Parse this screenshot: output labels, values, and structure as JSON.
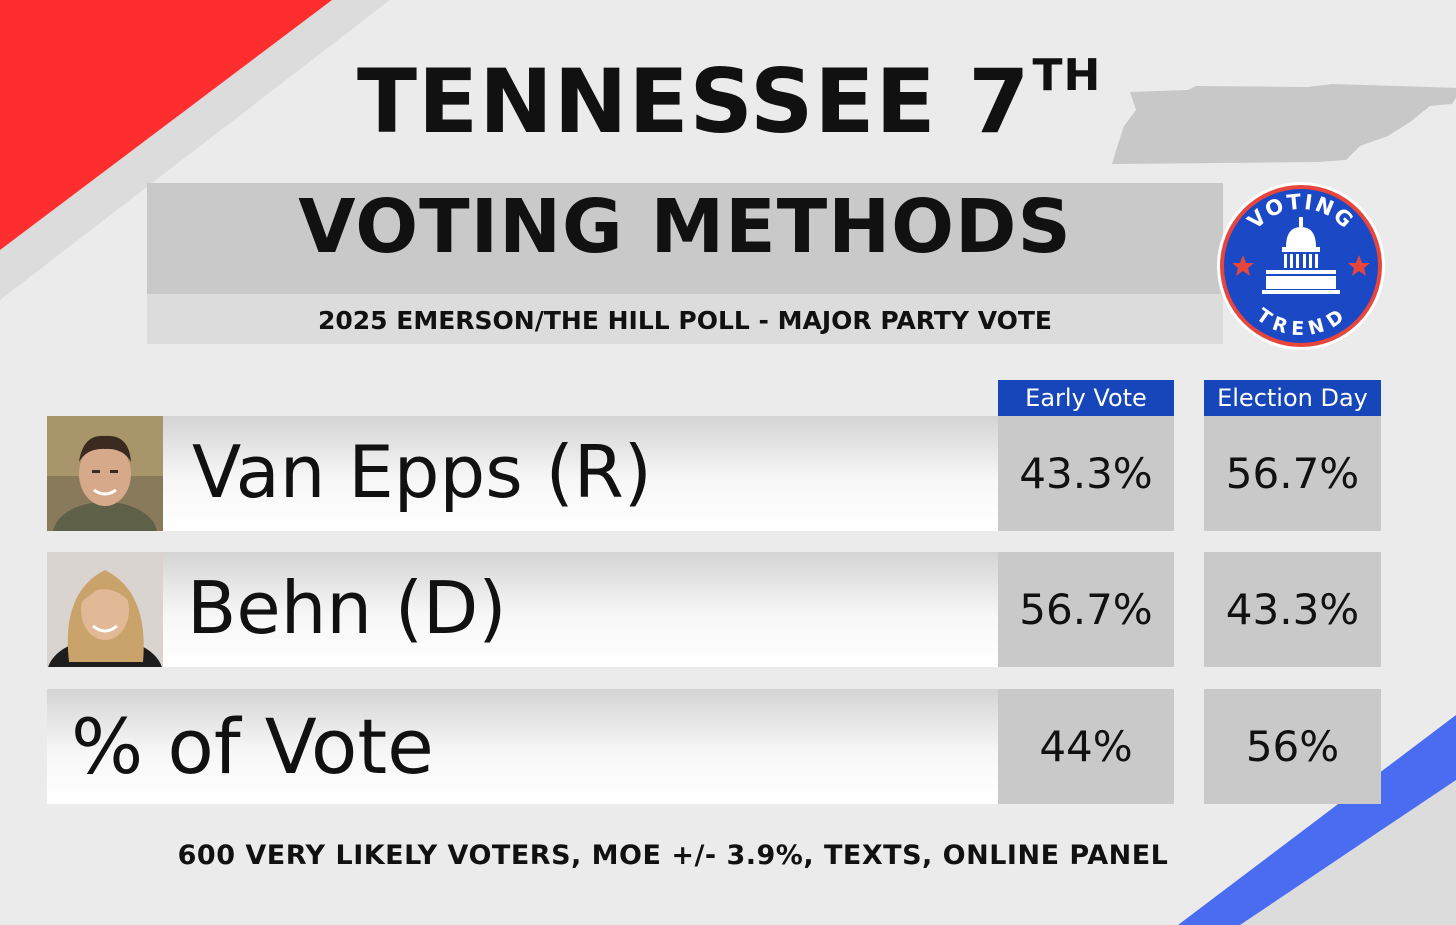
{
  "title": "TENNESSEE 7",
  "title_sup": "TH",
  "subtitle": "VOTING METHODS",
  "source": "2025 EMERSON/THE HILL POLL - MAJOR PARTY VOTE",
  "footer": "600 VERY LIKELY VOTERS, MOE +/- 3.9%, TEXTS, ONLINE PANEL",
  "logo": {
    "top_text": "VOTING",
    "bottom_text": "TREND",
    "icon": "capitol-dome-icon"
  },
  "colors": {
    "red": "#ff2e2e",
    "blue": "#1646b9",
    "accent_blue": "#4a6cf0",
    "cell_gray": "#c9c9c9",
    "map_gray": "#c8c8c8"
  },
  "chart_data": {
    "type": "table",
    "columns": [
      "Early Vote",
      "Election Day"
    ],
    "rows": [
      {
        "label": "Van Epps (R)",
        "values": [
          "43.3%",
          "56.7%"
        ]
      },
      {
        "label": "Behn (D)",
        "values": [
          "56.7%",
          "43.3%"
        ]
      },
      {
        "label": "% of Vote",
        "values": [
          "44%",
          "56%"
        ]
      }
    ]
  }
}
